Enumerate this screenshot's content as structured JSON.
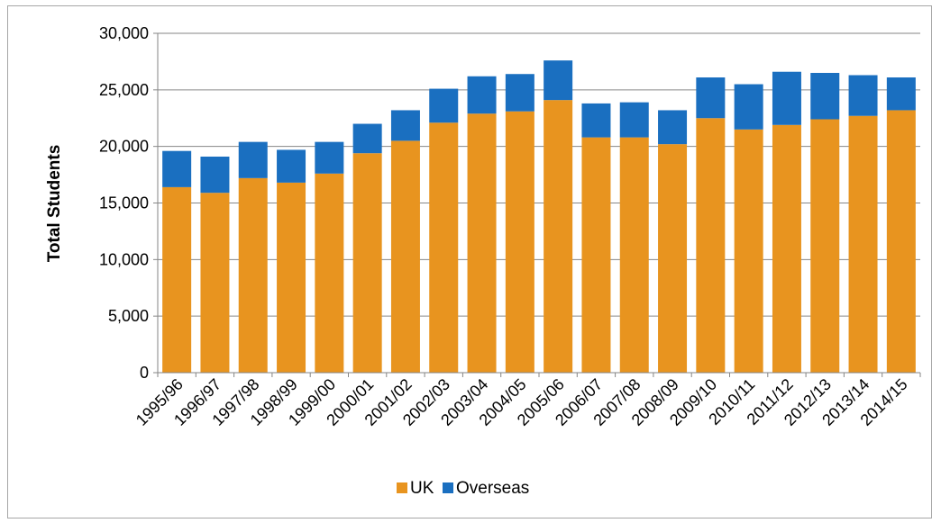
{
  "chart_data": {
    "type": "bar",
    "stacked": true,
    "title": "",
    "xlabel": "",
    "ylabel": "Total Students",
    "ylim": [
      0,
      30000
    ],
    "yticks": [
      "0",
      "5,000",
      "10,000",
      "15,000",
      "20,000",
      "25,000",
      "30,000"
    ],
    "ytick_values": [
      0,
      5000,
      10000,
      15000,
      20000,
      25000,
      30000
    ],
    "grid": true,
    "legend_position": "bottom",
    "categories": [
      "1995/96",
      "1996/97",
      "1997/98",
      "1998/99",
      "1999/00",
      "2000/01",
      "2001/02",
      "2002/03",
      "2003/04",
      "2004/05",
      "2005/06",
      "2006/07",
      "2007/08",
      "2008/09",
      "2009/10",
      "2010/11",
      "2011/12",
      "2012/13",
      "2013/14",
      "2014/15"
    ],
    "series": [
      {
        "name": "UK",
        "color": "#e8941f",
        "values": [
          16400,
          15900,
          17200,
          16800,
          17600,
          19400,
          20500,
          22100,
          22900,
          23100,
          24100,
          20800,
          20800,
          20200,
          22500,
          21500,
          21900,
          22400,
          22700,
          23200
        ]
      },
      {
        "name": "Overseas",
        "color": "#1a6fc0",
        "values": [
          3200,
          3200,
          3200,
          2900,
          2800,
          2600,
          2700,
          3000,
          3300,
          3300,
          3500,
          3000,
          3100,
          3000,
          3600,
          4000,
          4700,
          4100,
          3600,
          2900
        ]
      }
    ]
  }
}
